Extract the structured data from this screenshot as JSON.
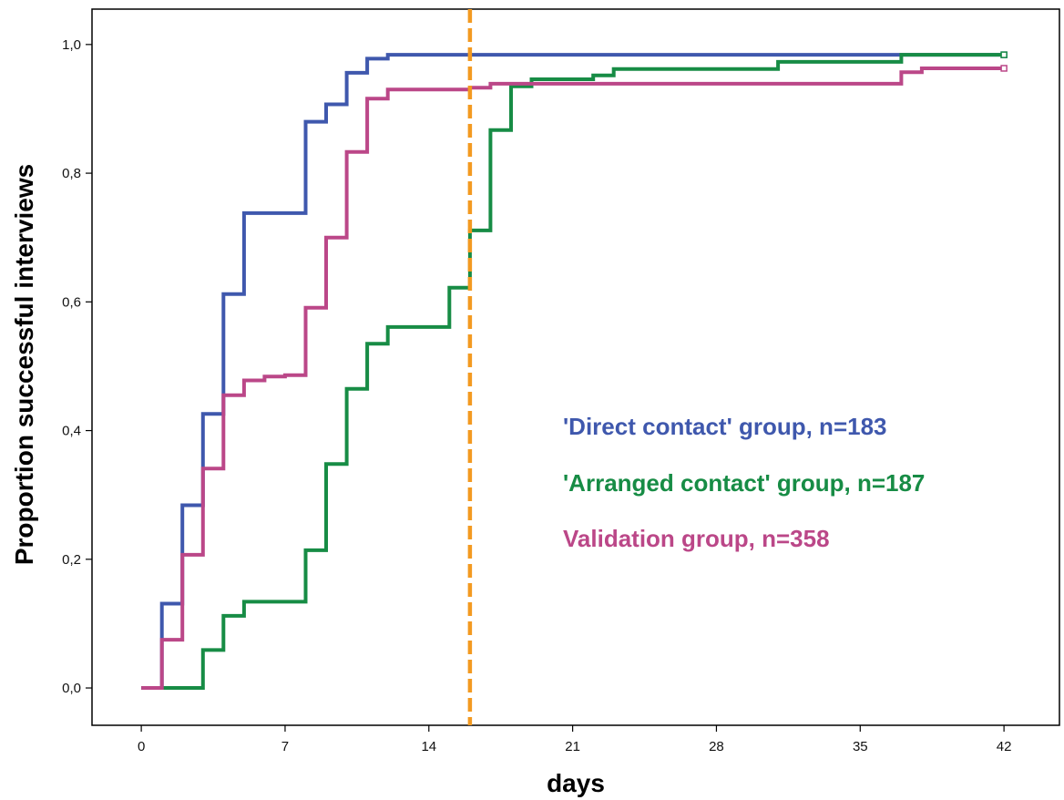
{
  "chart_data": {
    "type": "line",
    "step": true,
    "xlabel": "days",
    "ylabel": "Proportion successful interviews",
    "xlim": [
      -2.4,
      44.7
    ],
    "ylim": [
      -0.058,
      1.055
    ],
    "x_ticks": [
      0,
      7,
      14,
      21,
      28,
      35,
      42
    ],
    "x_tick_labels": [
      "0",
      "7",
      "14",
      "21",
      "28",
      "35",
      "42"
    ],
    "y_ticks": [
      0,
      0.2,
      0.4,
      0.6,
      0.8,
      1.0
    ],
    "y_tick_labels": [
      "0,0",
      "0,2",
      "0,4",
      "0,6",
      "0,8",
      "1,0"
    ],
    "grid": false,
    "legend_position": "center-right",
    "reference_line": {
      "x": 16,
      "color": "#f39a21",
      "style": "dashed"
    },
    "series": [
      {
        "name": "'Direct contact' group, n=183",
        "color": "#3f58ad",
        "points": [
          [
            0,
            0
          ],
          [
            1,
            0.131
          ],
          [
            2,
            0.284
          ],
          [
            3,
            0.426
          ],
          [
            4,
            0.612
          ],
          [
            5,
            0.738
          ],
          [
            8,
            0.88
          ],
          [
            9,
            0.907
          ],
          [
            10,
            0.956
          ],
          [
            11,
            0.978
          ],
          [
            12,
            0.984
          ],
          [
            42,
            0.984
          ]
        ]
      },
      {
        "name": "'Arranged contact' group, n=187",
        "color": "#178c45",
        "points": [
          [
            0,
            0
          ],
          [
            1,
            0
          ],
          [
            3,
            0.059
          ],
          [
            4,
            0.112
          ],
          [
            5,
            0.134
          ],
          [
            8,
            0.214
          ],
          [
            9,
            0.348
          ],
          [
            10,
            0.465
          ],
          [
            11,
            0.535
          ],
          [
            12,
            0.561
          ],
          [
            15,
            0.622
          ],
          [
            16,
            0.711
          ],
          [
            17,
            0.867
          ],
          [
            18,
            0.935
          ],
          [
            19,
            0.946
          ],
          [
            22,
            0.952
          ],
          [
            23,
            0.962
          ],
          [
            31,
            0.973
          ],
          [
            37,
            0.984
          ],
          [
            42,
            0.984
          ]
        ]
      },
      {
        "name": "Validation group, n=358",
        "color": "#bb4788",
        "points": [
          [
            0,
            0
          ],
          [
            1,
            0.075
          ],
          [
            2,
            0.207
          ],
          [
            3,
            0.341
          ],
          [
            4,
            0.455
          ],
          [
            5,
            0.478
          ],
          [
            6,
            0.484
          ],
          [
            7,
            0.486
          ],
          [
            8,
            0.591
          ],
          [
            9,
            0.7
          ],
          [
            10,
            0.833
          ],
          [
            11,
            0.916
          ],
          [
            12,
            0.93
          ],
          [
            16,
            0.933
          ],
          [
            17,
            0.939
          ],
          [
            37,
            0.957
          ],
          [
            38,
            0.963
          ],
          [
            42,
            0.963
          ]
        ]
      }
    ]
  }
}
